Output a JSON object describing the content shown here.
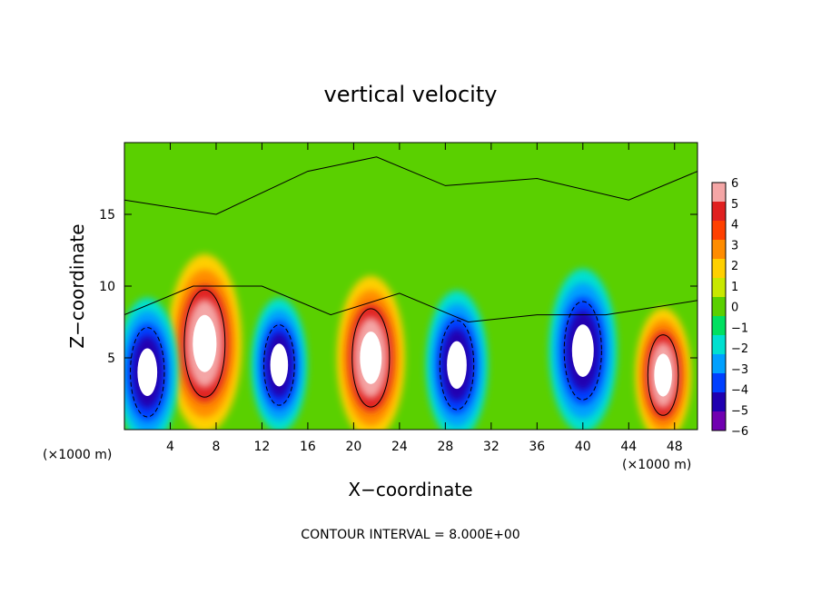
{
  "chart_data": {
    "type": "heatmap",
    "title": "vertical velocity",
    "xlabel": "X−coordinate",
    "ylabel": "Z−coordinate",
    "x_unit_left": "(×1000 m)",
    "x_unit_right": "(×1000 m)",
    "xlim": [
      0,
      50
    ],
    "ylim": [
      0,
      20
    ],
    "x_ticks": [
      4,
      8,
      12,
      16,
      20,
      24,
      28,
      32,
      36,
      40,
      44,
      48
    ],
    "y_ticks": [
      5,
      10,
      15
    ],
    "colorbar": {
      "range": [
        -6,
        6
      ],
      "ticks": [
        "6",
        "5",
        "4",
        "3",
        "2",
        "1",
        "0",
        "−1",
        "−2",
        "−3",
        "−4",
        "−5",
        "−6"
      ],
      "colors": [
        "#f4a6a6",
        "#e02020",
        "#ff4000",
        "#ff8c00",
        "#ffd000",
        "#c8e800",
        "#5ad000",
        "#00e060",
        "#00e0d0",
        "#00a0ff",
        "#0040ff",
        "#2000b0",
        "#7000b0"
      ]
    },
    "cells_background": "green",
    "updrafts": [
      {
        "x": 7.0,
        "z": 6.0,
        "amp": 12
      },
      {
        "x": 21.5,
        "z": 5.0,
        "amp": 11
      },
      {
        "x": 47.0,
        "z": 3.8,
        "amp": 9
      }
    ],
    "downdrafts": [
      {
        "x": 2.0,
        "z": 4.0,
        "amp": 10
      },
      {
        "x": 13.5,
        "z": 4.5,
        "amp": 9
      },
      {
        "x": 29.0,
        "z": 4.5,
        "amp": 10
      },
      {
        "x": 40.0,
        "z": 5.5,
        "amp": 11
      }
    ],
    "footer": "CONTOUR INTERVAL = 8.000E+00"
  }
}
